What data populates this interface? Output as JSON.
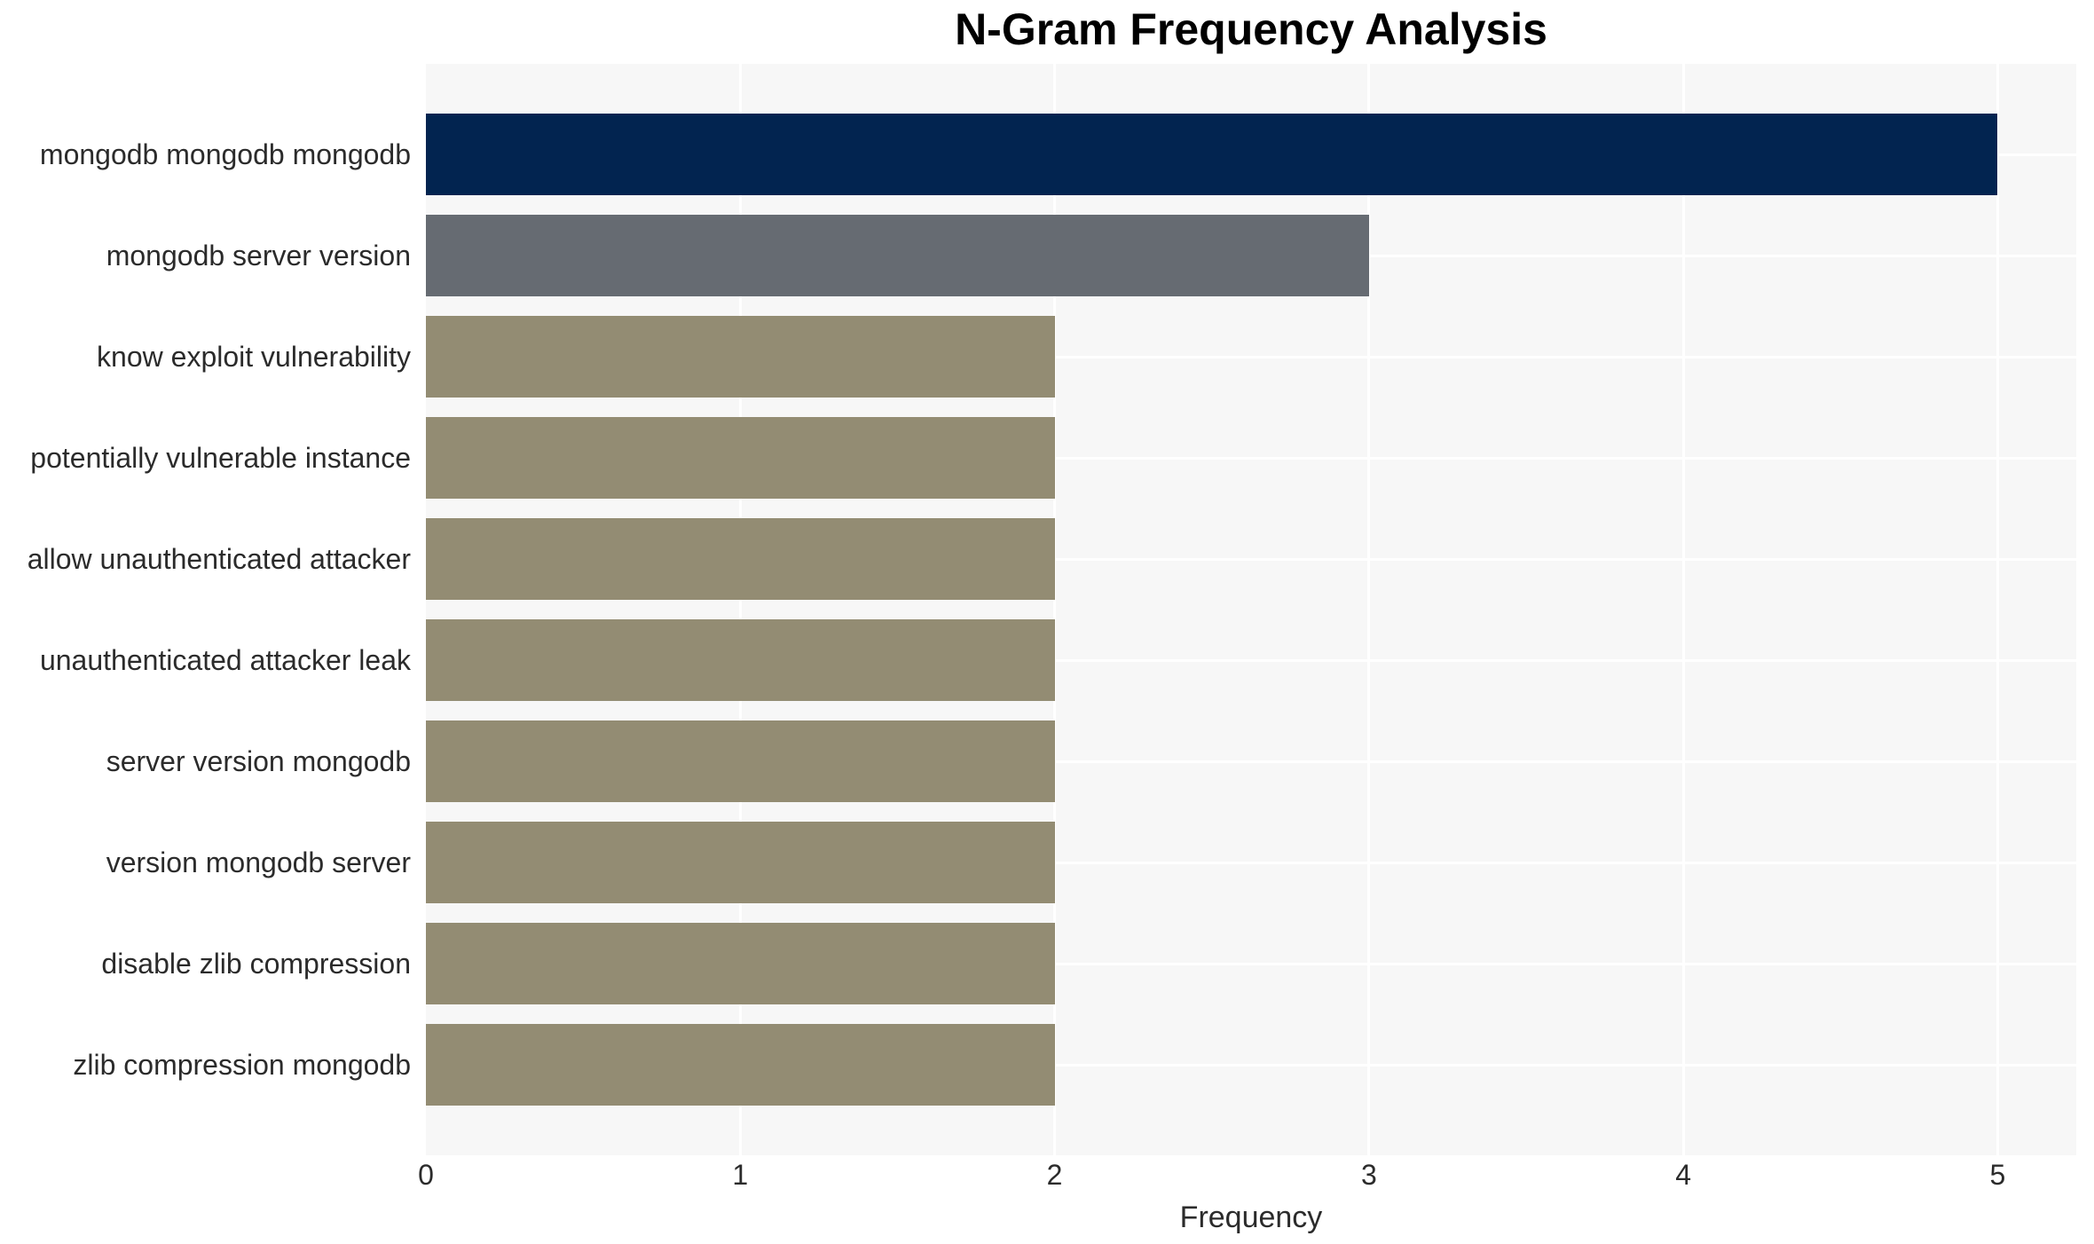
{
  "title": "N-Gram Frequency Analysis",
  "chart_data": {
    "type": "bar",
    "orientation": "horizontal",
    "title": "N-Gram Frequency Analysis",
    "xlabel": "Frequency",
    "ylabel": "",
    "categories": [
      "mongodb mongodb mongodb",
      "mongodb server version",
      "know exploit vulnerability",
      "potentially vulnerable instance",
      "allow unauthenticated attacker",
      "unauthenticated attacker leak",
      "server version mongodb",
      "version mongodb server",
      "disable zlib compression",
      "zlib compression mongodb"
    ],
    "values": [
      5,
      3,
      2,
      2,
      2,
      2,
      2,
      2,
      2,
      2
    ],
    "bar_colors": [
      "#022450",
      "#666b72",
      "#938c73",
      "#938c73",
      "#938c73",
      "#938c73",
      "#938c73",
      "#938c73",
      "#938c73",
      "#938c73"
    ],
    "xticks": [
      0,
      1,
      2,
      3,
      4,
      5
    ],
    "xlim": [
      0,
      5.25
    ],
    "grid": "on",
    "legend": "none",
    "colors": {
      "panel_background": "#f7f7f7",
      "figure_background": "#ffffff",
      "gridline": "#ffffff",
      "tick_text": "#2b2b2b",
      "title_text": "#000000"
    }
  }
}
